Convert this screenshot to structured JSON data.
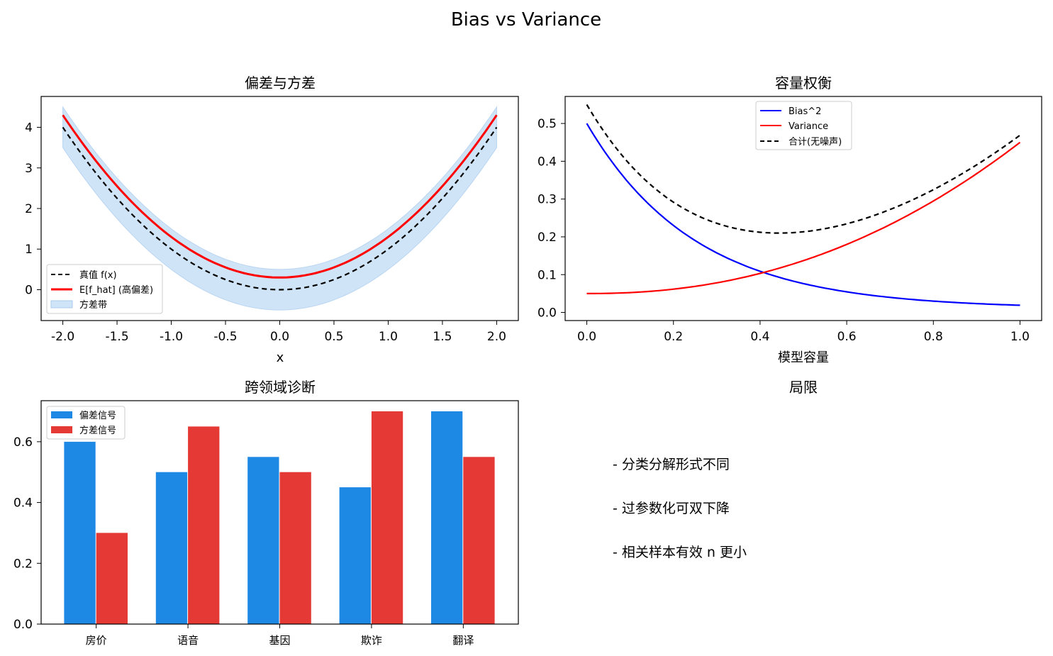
{
  "figure": {
    "title": "Bias vs Variance"
  },
  "chart_data": [
    {
      "type": "line",
      "title": "偏差与方差",
      "xlabel": "x",
      "ylabel": "",
      "xlim": [
        -2.2,
        2.2
      ],
      "ylim": [
        -0.76,
        4.76
      ],
      "xticks": [
        "-2.0",
        "-1.5",
        "-1.0",
        "-0.5",
        "0.0",
        "0.5",
        "1.0",
        "1.5",
        "2.0"
      ],
      "yticks": [
        "0",
        "1",
        "2",
        "3",
        "4"
      ],
      "x": [
        -2.0,
        -1.5,
        -1.0,
        -0.5,
        0.0,
        0.5,
        1.0,
        1.5,
        2.0
      ],
      "series": [
        {
          "name": "真值 f(x)",
          "style": "dashed",
          "color": "#000000",
          "values": [
            4.0,
            2.25,
            1.0,
            0.25,
            0.0,
            0.25,
            1.0,
            2.25,
            4.0
          ]
        },
        {
          "name": "E[f_hat] (高偏差)",
          "style": "solid",
          "color": "#ff0000",
          "values": [
            4.3,
            2.55,
            1.3,
            0.55,
            0.3,
            0.55,
            1.3,
            2.55,
            4.3
          ]
        }
      ],
      "band": {
        "name": "方差带",
        "color": "#d0e4f7",
        "center_offset": 0.0,
        "half_width": 0.5
      },
      "legend": "lower-left",
      "grid": false
    },
    {
      "type": "line",
      "title": "容量权衡",
      "xlabel": "模型容量",
      "ylabel": "",
      "xlim": [
        -0.05,
        1.05
      ],
      "ylim": [
        -0.0215,
        0.5715
      ],
      "xticks": [
        "0.0",
        "0.2",
        "0.4",
        "0.6",
        "0.8",
        "1.0"
      ],
      "yticks": [
        "0.0",
        "0.1",
        "0.2",
        "0.3",
        "0.4",
        "0.5"
      ],
      "series": [
        {
          "name": "Bias^2",
          "style": "solid",
          "color": "#0000ff",
          "formula": "bias"
        },
        {
          "name": "Variance",
          "style": "solid",
          "color": "#ff0000",
          "formula": "variance"
        },
        {
          "name": "合计(无噪声)",
          "style": "dashed",
          "color": "#000000",
          "formula": "total"
        }
      ],
      "legend": "top-center",
      "grid": false
    },
    {
      "type": "bar",
      "title": "跨领域诊断",
      "categories": [
        "房价",
        "语音",
        "基因",
        "欺诈",
        "翻译"
      ],
      "ylim": [
        0,
        0.735
      ],
      "yticks": [
        "0.0",
        "0.2",
        "0.4",
        "0.6"
      ],
      "series": [
        {
          "name": "偏差信号",
          "color": "#1e88e5",
          "values": [
            0.6,
            0.5,
            0.55,
            0.45,
            0.7
          ]
        },
        {
          "name": "方差信号",
          "color": "#e53935",
          "values": [
            0.3,
            0.65,
            0.5,
            0.7,
            0.55
          ]
        }
      ],
      "legend": "top-left",
      "grid": false
    }
  ],
  "notes_panel": {
    "title": "局限",
    "lines": [
      "- 分类分解形式不同",
      "- 过参数化可双下降",
      "- 相关样本有效 n 更小"
    ]
  }
}
